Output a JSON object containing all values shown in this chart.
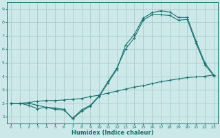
{
  "xlabel": "Humidex (Indice chaleur)",
  "ylabel": "",
  "bg_color": "#cce8e8",
  "grid_color": "#aacccc",
  "line_color": "#1a7070",
  "xlim": [
    -0.5,
    23.5
  ],
  "ylim": [
    0.5,
    9.5
  ],
  "xticks": [
    0,
    1,
    2,
    3,
    4,
    5,
    6,
    7,
    8,
    9,
    10,
    11,
    12,
    13,
    14,
    15,
    16,
    17,
    18,
    19,
    20,
    21,
    22,
    23
  ],
  "yticks": [
    1,
    2,
    3,
    4,
    5,
    6,
    7,
    8,
    9
  ],
  "line1_x": [
    0,
    1,
    2,
    3,
    4,
    5,
    6,
    7,
    8,
    9,
    10,
    11,
    12,
    13,
    14,
    15,
    16,
    17,
    18,
    19,
    20,
    21,
    22,
    23
  ],
  "line1_y": [
    2.0,
    2.0,
    2.0,
    1.85,
    1.7,
    1.65,
    1.55,
    0.85,
    1.4,
    1.8,
    2.5,
    3.5,
    4.5,
    6.3,
    7.1,
    8.3,
    8.7,
    8.85,
    8.75,
    8.35,
    8.35,
    6.6,
    5.0,
    4.1
  ],
  "line2_x": [
    0,
    1,
    2,
    3,
    4,
    5,
    6,
    7,
    8,
    9,
    10,
    11,
    12,
    13,
    14,
    15,
    16,
    17,
    18,
    19,
    20,
    21,
    22,
    23
  ],
  "line2_y": [
    2.0,
    2.0,
    2.05,
    2.15,
    2.2,
    2.2,
    2.25,
    2.3,
    2.35,
    2.5,
    2.6,
    2.75,
    2.9,
    3.05,
    3.2,
    3.3,
    3.45,
    3.6,
    3.7,
    3.8,
    3.9,
    3.95,
    4.0,
    4.1
  ],
  "line3_x": [
    0,
    1,
    2,
    3,
    4,
    5,
    6,
    7,
    8,
    9,
    10,
    11,
    12,
    13,
    14,
    15,
    16,
    17,
    18,
    19,
    20,
    21,
    22,
    23
  ],
  "line3_y": [
    2.0,
    2.0,
    1.85,
    1.6,
    1.7,
    1.55,
    1.5,
    0.9,
    1.5,
    1.85,
    2.55,
    3.6,
    4.6,
    6.0,
    6.85,
    8.15,
    8.55,
    8.55,
    8.5,
    8.15,
    8.2,
    6.45,
    4.85,
    4.05
  ]
}
